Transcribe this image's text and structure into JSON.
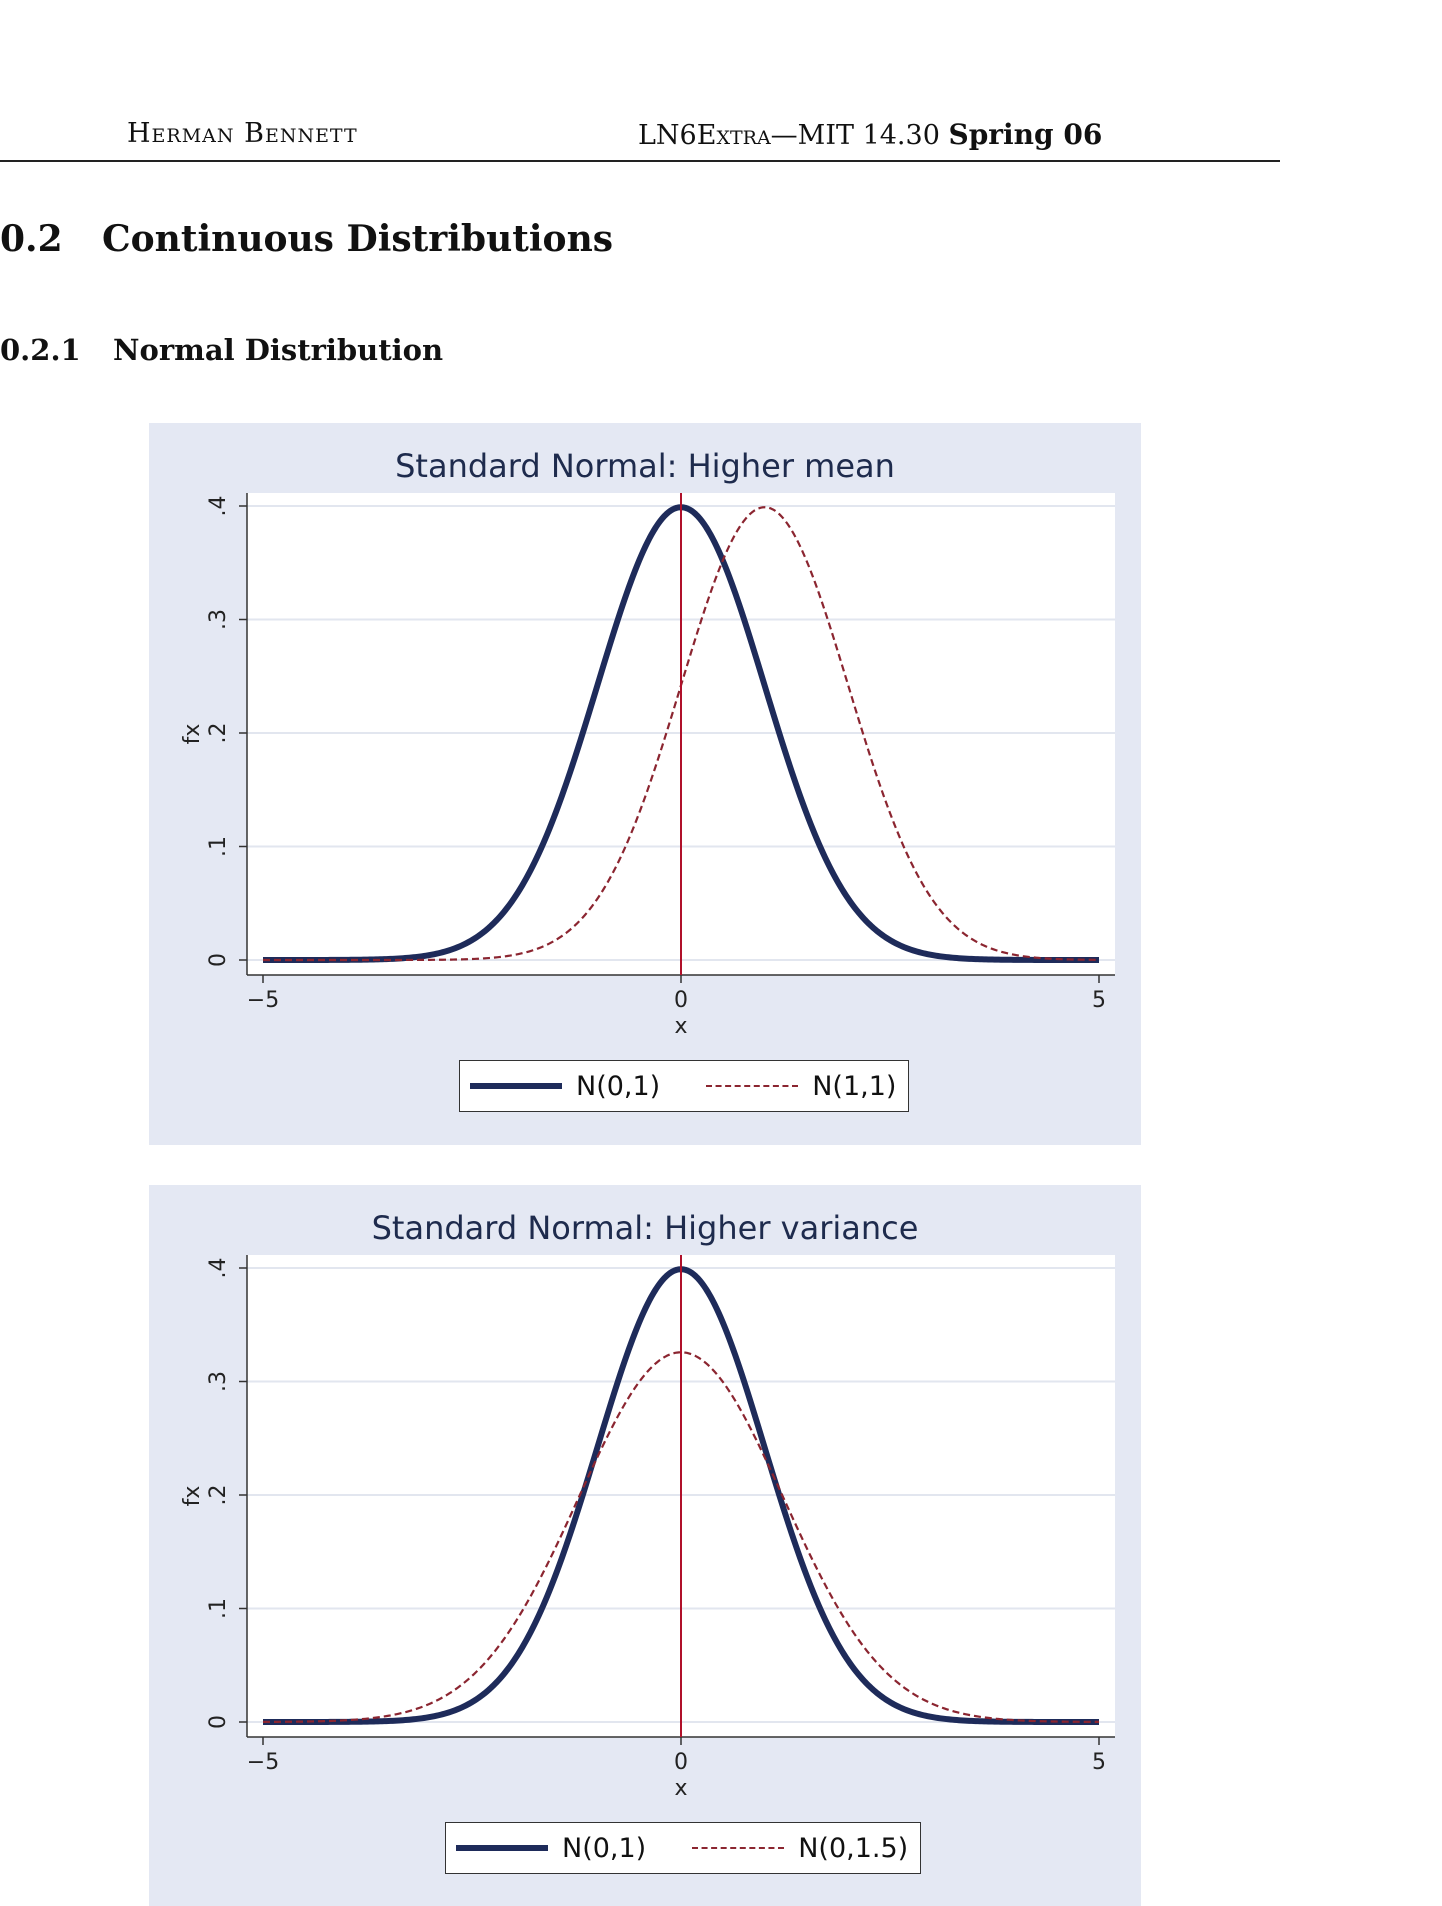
{
  "header": {
    "author": "Herman Bennett",
    "course_small_caps": "LN6Extra",
    "course_rest": "—MIT 14.30",
    "term": "Spring 06"
  },
  "section": {
    "number": "0.2",
    "title": "Continuous Distributions"
  },
  "subsection": {
    "number": "0.2.1",
    "title": "Normal Distribution"
  },
  "colors": {
    "figure_bg": "#e4e8f3",
    "solid_series": "#1e2b5a",
    "dashed_series": "#8b2530",
    "mean_line": "#b0102a",
    "title": "#1e2b4d"
  },
  "chart_data": [
    {
      "type": "line",
      "title": "Standard Normal: Higher mean",
      "xlabel": "x",
      "ylabel": "fx",
      "xlim": [
        -5,
        5
      ],
      "ylim": [
        0,
        0.4
      ],
      "x_ticks": [
        "−5",
        "0",
        "5"
      ],
      "y_ticks": [
        "0",
        ".1",
        ".2",
        ".3",
        ".4"
      ],
      "grid": true,
      "legend_position": "bottom",
      "vertical_line_x": 0,
      "series": [
        {
          "name": "N(0,1)",
          "style": "solid",
          "mean": 0,
          "variance": 1
        },
        {
          "name": "N(1,1)",
          "style": "dashed",
          "mean": 1,
          "variance": 1
        }
      ]
    },
    {
      "type": "line",
      "title": "Standard Normal: Higher variance",
      "xlabel": "x",
      "ylabel": "fx",
      "xlim": [
        -5,
        5
      ],
      "ylim": [
        0,
        0.4
      ],
      "x_ticks": [
        "−5",
        "0",
        "5"
      ],
      "y_ticks": [
        "0",
        ".1",
        ".2",
        ".3",
        ".4"
      ],
      "grid": true,
      "legend_position": "bottom",
      "vertical_line_x": 0,
      "series": [
        {
          "name": "N(0,1)",
          "style": "solid",
          "mean": 0,
          "variance": 1
        },
        {
          "name": "N(0,1.5)",
          "style": "dashed",
          "mean": 0,
          "variance": 1.5
        }
      ]
    }
  ]
}
